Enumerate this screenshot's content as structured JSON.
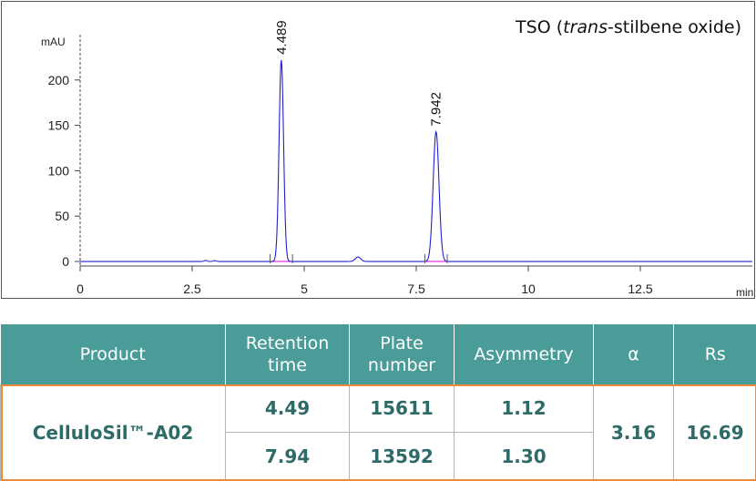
{
  "chart_data": {
    "type": "line",
    "title": "TSO (trans-stilbene oxide)",
    "title_parts": {
      "open": "TSO (",
      "italic": "trans",
      "rest": "-stilbene oxide)"
    },
    "x_unit": "min",
    "y_unit": "mAU",
    "xlim": [
      0,
      15
    ],
    "ylim": [
      -5,
      250
    ],
    "x_ticks": [
      0,
      2.5,
      5,
      7.5,
      10,
      12.5
    ],
    "x_tick_labels": [
      "0",
      "2.5",
      "5",
      "7.5",
      "10",
      "12.5"
    ],
    "y_ticks": [
      0,
      50,
      100,
      150,
      200
    ],
    "y_tick_labels": [
      "0",
      "50",
      "100",
      "150",
      "200"
    ],
    "grid": false,
    "series": [
      {
        "color": "#2020d0",
        "peaks": [
          {
            "time": 4.489,
            "height": 222,
            "width": 0.05,
            "label": "4.489"
          },
          {
            "time": 7.942,
            "height": 143,
            "width": 0.065,
            "label": "7.942"
          },
          {
            "time": 6.2,
            "height": 5,
            "width": 0.06,
            "label": ""
          },
          {
            "time": 2.8,
            "height": 1.2,
            "width": 0.03,
            "label": ""
          },
          {
            "time": 3.0,
            "height": 1.0,
            "width": 0.03,
            "label": ""
          }
        ]
      }
    ],
    "baseline_color": "#ee33ee"
  },
  "table": {
    "headers": [
      "Product",
      "Retention\ntime",
      "Plate\nnumber",
      "Asymmetry",
      "α",
      "Rs"
    ],
    "product": "CelluloSil™-A02",
    "rows": [
      {
        "retention": "4.49",
        "plates": "15611",
        "asymmetry": "1.12"
      },
      {
        "retention": "7.94",
        "plates": "13592",
        "asymmetry": "1.30"
      }
    ],
    "alpha": "3.16",
    "rs": "16.69"
  }
}
